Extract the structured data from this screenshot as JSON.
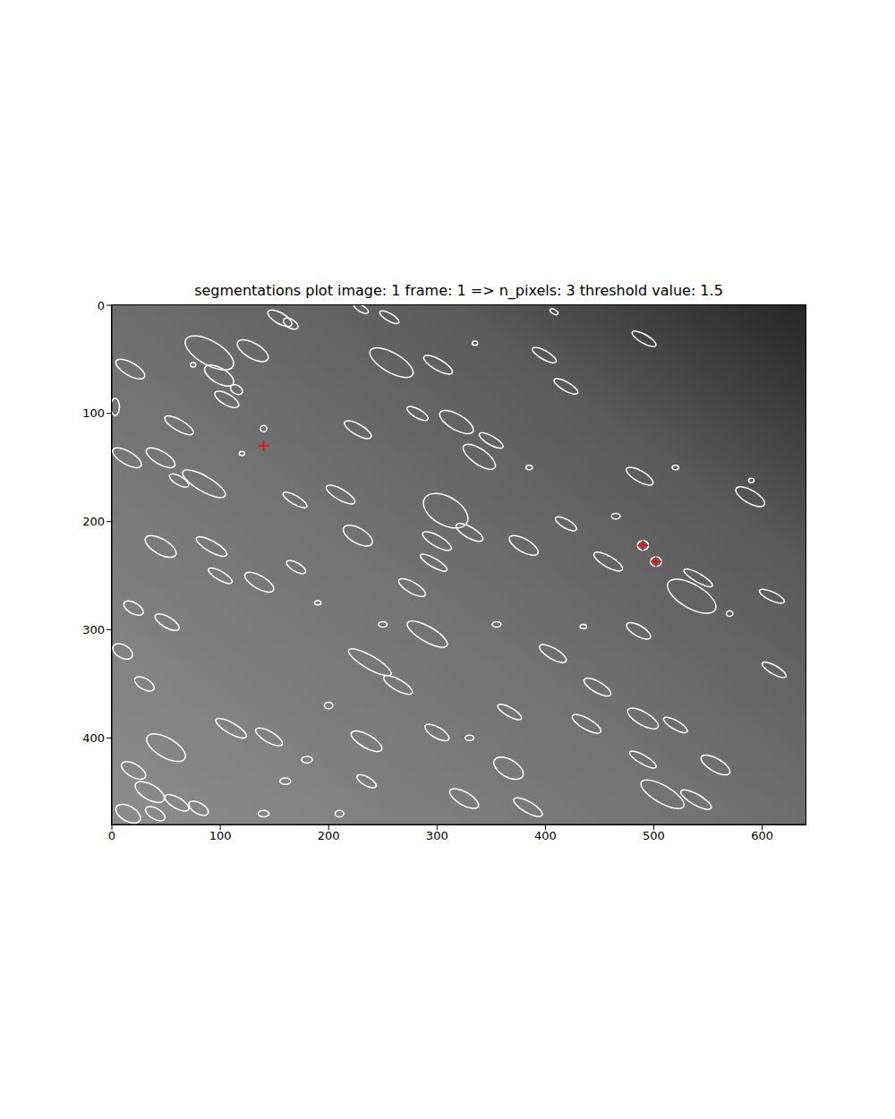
{
  "chart_data": {
    "type": "scatter",
    "title": "segmentations plot image: 1 frame: 1 => n_pixels: 3 threshold value: 1.5",
    "xlim": [
      0,
      640
    ],
    "ylim": [
      480,
      0
    ],
    "xticks": [
      0,
      100,
      200,
      300,
      400,
      500,
      600
    ],
    "yticks": [
      0,
      100,
      200,
      300,
      400
    ],
    "segments": {
      "marker": "ellipse",
      "color": "#ffffff",
      "x": [
        90,
        99,
        115,
        130,
        17,
        155,
        165,
        230,
        256,
        258,
        301,
        408,
        491,
        399,
        419,
        3,
        106,
        62,
        227,
        282,
        318,
        339,
        350,
        14,
        45,
        62,
        85,
        169,
        211,
        308,
        330,
        227,
        300,
        297,
        380,
        419,
        458,
        487,
        589,
        535,
        541,
        609,
        611,
        45,
        92,
        136,
        100,
        170,
        277,
        291,
        238,
        264,
        407,
        448,
        486,
        490,
        520,
        438,
        490,
        557,
        508,
        539,
        384,
        325,
        366,
        300,
        235,
        235,
        145,
        110,
        50,
        367,
        51,
        20,
        10,
        30,
        490,
        502,
        140,
        35,
        20,
        60,
        15,
        40,
        80,
        200,
        180,
        210,
        160,
        140,
        330,
        570,
        435,
        335,
        590,
        465,
        385,
        190,
        120,
        75,
        250,
        520,
        355
      ],
      "y": [
        44,
        65,
        78,
        42,
        59,
        12,
        17,
        3,
        11,
        53,
        55,
        6,
        31,
        46,
        75,
        94,
        87,
        111,
        115,
        100,
        108,
        140,
        125,
        141,
        141,
        162,
        165,
        180,
        175,
        190,
        210,
        213,
        218,
        238,
        222,
        202,
        237,
        158,
        177,
        269,
        252,
        269,
        337,
        223,
        223,
        256,
        250,
        242,
        261,
        304,
        330,
        351,
        322,
        353,
        301,
        382,
        388,
        387,
        420,
        425,
        452,
        457,
        464,
        456,
        428,
        395,
        403,
        440,
        399,
        391,
        409,
        376,
        293,
        280,
        320,
        350,
        222,
        237,
        114,
        450,
        430,
        460,
        470,
        470,
        465,
        370,
        420,
        470,
        440,
        470,
        400,
        285,
        297,
        35,
        162,
        195,
        150,
        275,
        137,
        55,
        295,
        150,
        295
      ],
      "width": [
        50,
        30,
        12,
        32,
        30,
        25,
        15,
        15,
        20,
        45,
        30,
        8,
        25,
        25,
        25,
        8,
        25,
        30,
        28,
        22,
        35,
        35,
        25,
        30,
        30,
        20,
        45,
        25,
        30,
        45,
        28,
        30,
        30,
        28,
        30,
        22,
        30,
        28,
        30,
        50,
        30,
        25,
        25,
        32,
        32,
        30,
        25,
        20,
        28,
        42,
        45,
        30,
        28,
        28,
        25,
        32,
        25,
        30,
        28,
        30,
        45,
        32,
        30,
        30,
        30,
        25,
        32,
        20,
        28,
        32,
        40,
        25,
        25,
        20,
        20,
        20,
        10,
        10,
        6,
        30,
        25,
        25,
        25,
        20,
        20,
        8,
        10,
        8,
        10,
        10,
        8,
        6,
        6,
        5,
        5,
        8,
        6,
        6,
        5,
        5,
        8,
        6,
        8
      ],
      "height": [
        22,
        14,
        8,
        14,
        12,
        10,
        8,
        6,
        7,
        18,
        10,
        4,
        8,
        8,
        8,
        16,
        10,
        10,
        10,
        8,
        14,
        14,
        8,
        12,
        12,
        8,
        14,
        8,
        10,
        26,
        10,
        14,
        10,
        8,
        12,
        8,
        10,
        10,
        12,
        22,
        8,
        8,
        8,
        14,
        10,
        12,
        8,
        8,
        10,
        14,
        12,
        10,
        10,
        10,
        10,
        12,
        8,
        10,
        8,
        12,
        16,
        10,
        10,
        12,
        16,
        10,
        12,
        8,
        10,
        10,
        18,
        8,
        10,
        10,
        12,
        10,
        9,
        9,
        6,
        14,
        12,
        10,
        14,
        10,
        10,
        6,
        6,
        6,
        6,
        6,
        5,
        5,
        4,
        4,
        4,
        5,
        4,
        4,
        4,
        4,
        5,
        4,
        5
      ],
      "angle": [
        30,
        30,
        30,
        30,
        30,
        30,
        30,
        30,
        30,
        30,
        30,
        30,
        30,
        30,
        30,
        0,
        30,
        30,
        30,
        30,
        30,
        35,
        30,
        30,
        30,
        30,
        30,
        30,
        30,
        30,
        30,
        30,
        30,
        30,
        30,
        30,
        30,
        30,
        30,
        30,
        30,
        25,
        30,
        30,
        30,
        30,
        30,
        30,
        30,
        30,
        30,
        30,
        30,
        30,
        30,
        30,
        30,
        30,
        30,
        30,
        30,
        30,
        30,
        30,
        30,
        30,
        30,
        30,
        30,
        30,
        30,
        30,
        30,
        30,
        30,
        30,
        0,
        0,
        0,
        30,
        30,
        30,
        30,
        30,
        30,
        0,
        0,
        0,
        0,
        0,
        0,
        0,
        0,
        0,
        0,
        0,
        0,
        0,
        0,
        0,
        0,
        0,
        0
      ]
    },
    "markers": {
      "marker": "plus",
      "color": "#ff0000",
      "x": [
        140,
        490,
        502
      ],
      "y": [
        130,
        222,
        237
      ]
    }
  }
}
